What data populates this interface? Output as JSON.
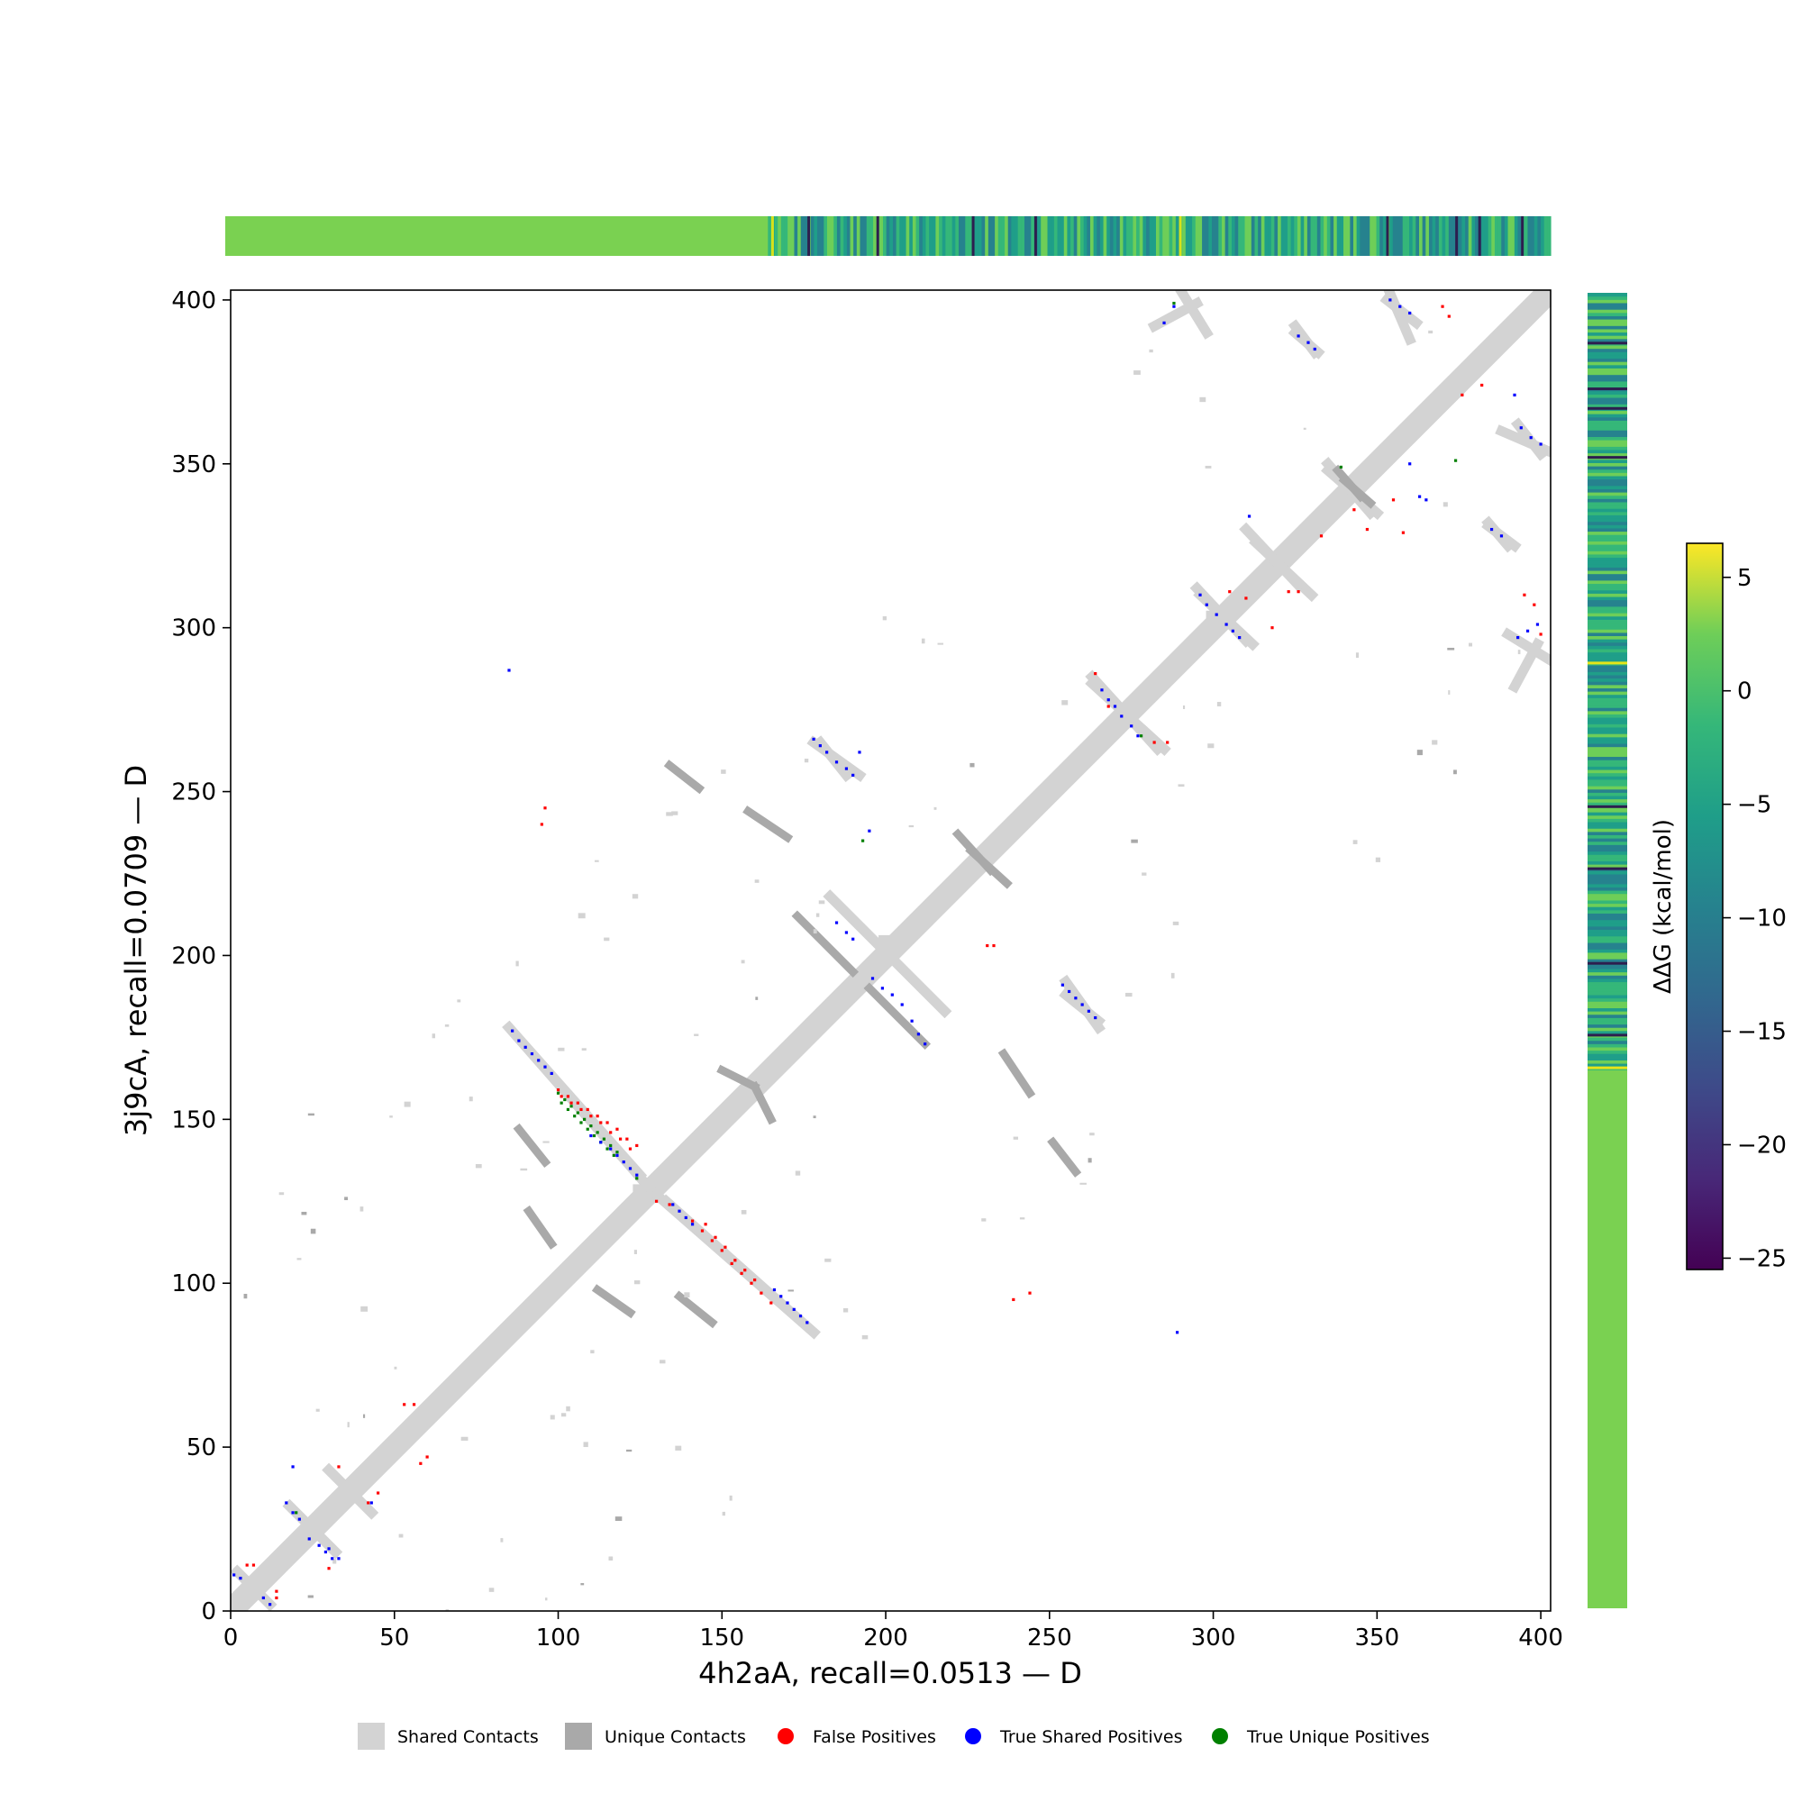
{
  "chart_data": {
    "type": "scatter",
    "xlabel": "4h2aA, recall=0.0513 — D",
    "ylabel": "3j9cA, recall=0.0709 — D",
    "xlim": [
      0,
      403
    ],
    "ylim": [
      0,
      403
    ],
    "xticks": [
      0,
      50,
      100,
      150,
      200,
      250,
      300,
      350,
      400
    ],
    "yticks": [
      0,
      50,
      100,
      150,
      200,
      250,
      300,
      350,
      400
    ],
    "grid": false,
    "legend_position": "bottom",
    "legend": [
      {
        "label": "Shared Contacts",
        "marker": "square",
        "color": "#d3d3d3"
      },
      {
        "label": "Unique Contacts",
        "marker": "square",
        "color": "#a9a9a9"
      },
      {
        "label": "False Positives",
        "marker": "circle",
        "color": "#ff0000"
      },
      {
        "label": "True Shared Positives",
        "marker": "circle",
        "color": "#0000ff"
      },
      {
        "label": "True Unique Positives",
        "marker": "circle",
        "color": "#008000"
      }
    ],
    "colorbar": {
      "label": "ΔΔG (kcal/mol)",
      "range": [
        -25.5,
        6.5
      ],
      "ticks": [
        5,
        0,
        -5,
        -10,
        -15,
        -20,
        -25
      ],
      "tick_labels": [
        "5",
        "0",
        "−5",
        "−10",
        "−15",
        "−20",
        "−25"
      ],
      "colormap": "viridis"
    },
    "top_strip": {
      "range": [
        0,
        403
      ],
      "neutral_until": 165,
      "neutral_color": "#7ad151",
      "dark_bands": [
        177,
        198,
        227,
        246,
        353,
        374,
        381,
        394
      ],
      "bright_bands": [
        166,
        290
      ]
    },
    "right_strip": {
      "range": [
        0,
        403
      ],
      "neutral_until": 165,
      "neutral_color": "#7ad151",
      "dark_bands": [
        176,
        198,
        227,
        246,
        353,
        368,
        374,
        388
      ],
      "bright_bands": [
        290,
        166
      ]
    },
    "diagonal_contacts": [
      [
        0,
        2
      ],
      [
        125,
        128
      ],
      [
        200,
        204
      ],
      [
        300,
        303
      ],
      [
        403,
        403
      ]
    ],
    "shared_contact_streaks": [
      {
        "from": [
          85,
          178
        ],
        "to": [
          125,
          133
        ]
      },
      {
        "from": [
          130,
          127
        ],
        "to": [
          178,
          85
        ]
      },
      {
        "from": [
          178,
          265
        ],
        "to": [
          192,
          255
        ]
      },
      {
        "from": [
          183,
          218
        ],
        "to": [
          218,
          183
        ]
      },
      {
        "from": [
          255,
          188
        ],
        "to": [
          265,
          180
        ]
      },
      {
        "from": [
          295,
          312
        ],
        "to": [
          310,
          296
        ]
      },
      {
        "from": [
          263,
          283
        ],
        "to": [
          285,
          263
        ]
      },
      {
        "from": [
          18,
          32
        ],
        "to": [
          32,
          18
        ]
      },
      {
        "from": [
          30,
          43
        ],
        "to": [
          43,
          30
        ]
      },
      {
        "from": [
          2,
          12
        ],
        "to": [
          12,
          2
        ]
      },
      {
        "from": [
          295,
          399
        ],
        "to": [
          282,
          392
        ]
      },
      {
        "from": [
          325,
          390
        ],
        "to": [
          332,
          384
        ]
      },
      {
        "from": [
          353,
          400
        ],
        "to": [
          362,
          393
        ]
      },
      {
        "from": [
          388,
          360
        ],
        "to": [
          402,
          354
        ]
      },
      {
        "from": [
          384,
          331
        ],
        "to": [
          392,
          325
        ]
      },
      {
        "from": [
          390,
          298
        ],
        "to": [
          403,
          290
        ]
      },
      {
        "from": [
          335,
          350
        ],
        "to": [
          348,
          335
        ]
      },
      {
        "from": [
          313,
          326
        ],
        "to": [
          330,
          310
        ]
      }
    ],
    "unique_contact_streaks": [
      {
        "from": [
          112,
          98
        ],
        "to": [
          122,
          91
        ]
      },
      {
        "from": [
          137,
          96
        ],
        "to": [
          147,
          88
        ]
      },
      {
        "from": [
          195,
          190
        ],
        "to": [
          212,
          173
        ]
      },
      {
        "from": [
          222,
          237
        ],
        "to": [
          232,
          226
        ]
      },
      {
        "from": [
          251,
          143
        ],
        "to": [
          258,
          134
        ]
      },
      {
        "from": [
          160,
          160
        ],
        "to": [
          165,
          150
        ]
      },
      {
        "from": [
          158,
          244
        ],
        "to": [
          170,
          236
        ]
      },
      {
        "from": [
          340,
          345
        ],
        "to": [
          348,
          338
        ]
      }
    ],
    "false_positives": [
      [
        100,
        159
      ],
      [
        103,
        157
      ],
      [
        106,
        155
      ],
      [
        109,
        153
      ],
      [
        112,
        151
      ],
      [
        115,
        149
      ],
      [
        118,
        147
      ],
      [
        121,
        144
      ],
      [
        124,
        142
      ],
      [
        101,
        157
      ],
      [
        104,
        155
      ],
      [
        107,
        153
      ],
      [
        110,
        151
      ],
      [
        113,
        149
      ],
      [
        116,
        146
      ],
      [
        119,
        144
      ],
      [
        122,
        141
      ],
      [
        130,
        125
      ],
      [
        134,
        124
      ],
      [
        141,
        119
      ],
      [
        144,
        116
      ],
      [
        147,
        113
      ],
      [
        150,
        110
      ],
      [
        153,
        106
      ],
      [
        156,
        103
      ],
      [
        159,
        100
      ],
      [
        162,
        97
      ],
      [
        165,
        94
      ],
      [
        145,
        118
      ],
      [
        148,
        114
      ],
      [
        151,
        111
      ],
      [
        154,
        107
      ],
      [
        157,
        104
      ],
      [
        160,
        101
      ],
      [
        5,
        14
      ],
      [
        7,
        14
      ],
      [
        14,
        6
      ],
      [
        14,
        4
      ],
      [
        30,
        13
      ],
      [
        33,
        44
      ],
      [
        42,
        33
      ],
      [
        45,
        36
      ],
      [
        53,
        63
      ],
      [
        56,
        63
      ],
      [
        58,
        45
      ],
      [
        60,
        47
      ],
      [
        95,
        240
      ],
      [
        96,
        245
      ],
      [
        231,
        203
      ],
      [
        233,
        203
      ],
      [
        239,
        95
      ],
      [
        244,
        97
      ],
      [
        264,
        286
      ],
      [
        268,
        276
      ],
      [
        282,
        265
      ],
      [
        286,
        265
      ],
      [
        305,
        311
      ],
      [
        310,
        309
      ],
      [
        318,
        300
      ],
      [
        323,
        311
      ],
      [
        326,
        311
      ],
      [
        333,
        328
      ],
      [
        343,
        336
      ],
      [
        347,
        330
      ],
      [
        355,
        339
      ],
      [
        358,
        329
      ],
      [
        370,
        398
      ],
      [
        372,
        395
      ],
      [
        376,
        371
      ],
      [
        382,
        374
      ],
      [
        395,
        310
      ],
      [
        398,
        307
      ],
      [
        400,
        298
      ]
    ],
    "true_shared_positives": [
      [
        86,
        177
      ],
      [
        88,
        174
      ],
      [
        90,
        172
      ],
      [
        92,
        170
      ],
      [
        94,
        168
      ],
      [
        96,
        166
      ],
      [
        98,
        164
      ],
      [
        110,
        145
      ],
      [
        113,
        143
      ],
      [
        116,
        141
      ],
      [
        118,
        139
      ],
      [
        120,
        137
      ],
      [
        122,
        135
      ],
      [
        124,
        133
      ],
      [
        135,
        124
      ],
      [
        137,
        122
      ],
      [
        139,
        120
      ],
      [
        141,
        118
      ],
      [
        166,
        98
      ],
      [
        168,
        96
      ],
      [
        170,
        94
      ],
      [
        172,
        92
      ],
      [
        174,
        90
      ],
      [
        176,
        88
      ],
      [
        178,
        266
      ],
      [
        180,
        264
      ],
      [
        182,
        262
      ],
      [
        185,
        259
      ],
      [
        188,
        257
      ],
      [
        190,
        255
      ],
      [
        185,
        210
      ],
      [
        188,
        207
      ],
      [
        190,
        205
      ],
      [
        196,
        193
      ],
      [
        199,
        190
      ],
      [
        202,
        188
      ],
      [
        205,
        185
      ],
      [
        208,
        180
      ],
      [
        210,
        176
      ],
      [
        212,
        173
      ],
      [
        195,
        238
      ],
      [
        192,
        262
      ],
      [
        254,
        191
      ],
      [
        256,
        189
      ],
      [
        258,
        187
      ],
      [
        260,
        185
      ],
      [
        262,
        183
      ],
      [
        264,
        181
      ],
      [
        266,
        281
      ],
      [
        268,
        278
      ],
      [
        270,
        276
      ],
      [
        272,
        273
      ],
      [
        275,
        270
      ],
      [
        277,
        267
      ],
      [
        296,
        310
      ],
      [
        298,
        307
      ],
      [
        301,
        304
      ],
      [
        304,
        301
      ],
      [
        306,
        299
      ],
      [
        308,
        297
      ],
      [
        10,
        4
      ],
      [
        12,
        2
      ],
      [
        17,
        33
      ],
      [
        19,
        30
      ],
      [
        21,
        28
      ],
      [
        24,
        22
      ],
      [
        27,
        20
      ],
      [
        29,
        18
      ],
      [
        31,
        16
      ],
      [
        19,
        44
      ],
      [
        30,
        19
      ],
      [
        33,
        16
      ],
      [
        43,
        33
      ],
      [
        1,
        11
      ],
      [
        3,
        10
      ],
      [
        85,
        287
      ],
      [
        289,
        85
      ],
      [
        311,
        334
      ],
      [
        285,
        393
      ],
      [
        288,
        398
      ],
      [
        326,
        389
      ],
      [
        329,
        387
      ],
      [
        331,
        385
      ],
      [
        354,
        400
      ],
      [
        357,
        398
      ],
      [
        360,
        396
      ],
      [
        360,
        350
      ],
      [
        363,
        340
      ],
      [
        365,
        339
      ],
      [
        385,
        330
      ],
      [
        388,
        328
      ],
      [
        392,
        371
      ],
      [
        393,
        297
      ],
      [
        396,
        299
      ],
      [
        399,
        301
      ],
      [
        394,
        361
      ],
      [
        397,
        358
      ],
      [
        400,
        356
      ]
    ],
    "true_unique_positives": [
      [
        100,
        158
      ],
      [
        102,
        156
      ],
      [
        104,
        154
      ],
      [
        106,
        152
      ],
      [
        108,
        150
      ],
      [
        110,
        148
      ],
      [
        112,
        146
      ],
      [
        114,
        144
      ],
      [
        116,
        142
      ],
      [
        118,
        140
      ],
      [
        101,
        155
      ],
      [
        103,
        153
      ],
      [
        105,
        151
      ],
      [
        107,
        149
      ],
      [
        109,
        147
      ],
      [
        111,
        145
      ],
      [
        113,
        143
      ],
      [
        115,
        141
      ],
      [
        117,
        139
      ],
      [
        124,
        132
      ],
      [
        20,
        30
      ],
      [
        193,
        235
      ],
      [
        278,
        267
      ],
      [
        288,
        399
      ],
      [
        339,
        349
      ],
      [
        374,
        351
      ]
    ]
  }
}
